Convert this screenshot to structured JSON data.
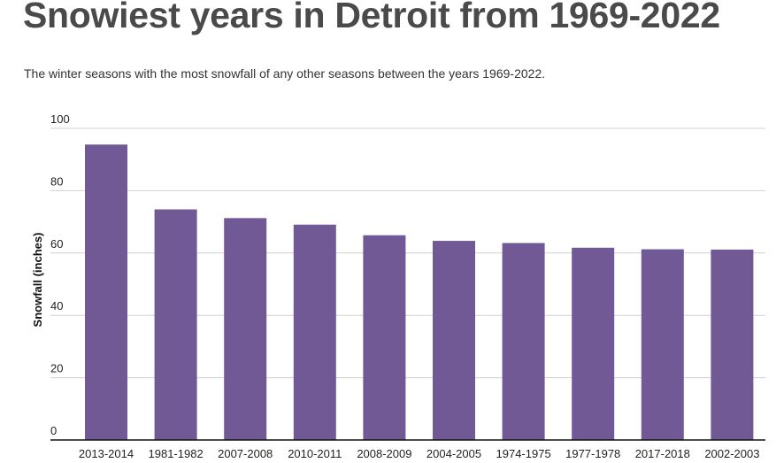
{
  "header": {
    "title": "Snowiest years in Detroit from 1969-2022",
    "subtitle": "The winter seasons with the most snowfall of any other seasons between the years 1969-2022."
  },
  "colors": {
    "bar": "#705994",
    "grid": "#d0d0d0",
    "axis": "#111111"
  },
  "chart_data": {
    "type": "bar",
    "title": "Snowiest years in Detroit from 1969-2022",
    "xlabel": "",
    "ylabel": "Snowfall (inches)",
    "ylim": [
      0,
      100
    ],
    "yticks": [
      0,
      20,
      40,
      60,
      80,
      100
    ],
    "categories": [
      "2013-2014",
      "1981-1982",
      "2007-2008",
      "2010-2011",
      "2008-2009",
      "2004-2005",
      "1974-1975",
      "1977-1978",
      "2017-2018",
      "2002-2003"
    ],
    "values": [
      94.8,
      74.0,
      71.2,
      69.1,
      65.7,
      63.9,
      63.2,
      61.7,
      61.2,
      61.1
    ],
    "grid": true
  }
}
